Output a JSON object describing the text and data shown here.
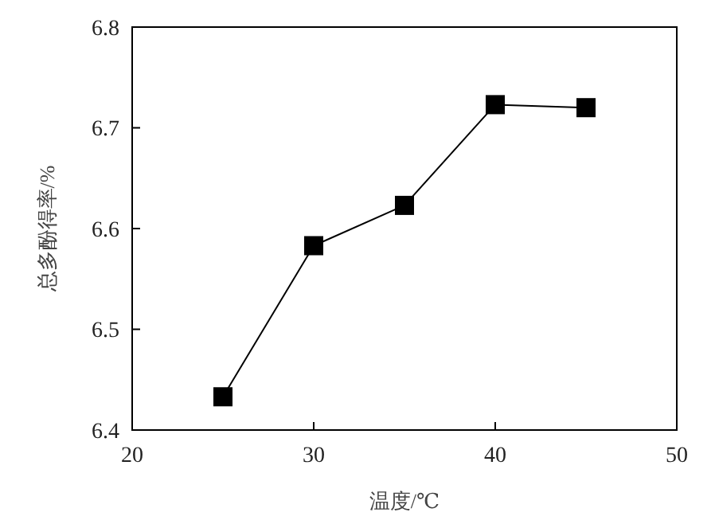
{
  "chart_data": {
    "type": "line",
    "xlabel": "温度/℃",
    "ylabel": "总多酚得率/%",
    "x": [
      25,
      30,
      35,
      40,
      45
    ],
    "series": [
      {
        "color": "#000000",
        "values": [
          6.433,
          6.583,
          6.623,
          6.723,
          6.72
        ]
      }
    ],
    "xlim": [
      20,
      50
    ],
    "xticks": [
      20,
      30,
      40,
      50
    ],
    "ylim": [
      6.4,
      6.8
    ],
    "yticks": [
      6.4,
      6.5,
      6.6,
      6.7,
      6.8
    ],
    "marker": "square",
    "line_style": "solid",
    "grid": false
  }
}
